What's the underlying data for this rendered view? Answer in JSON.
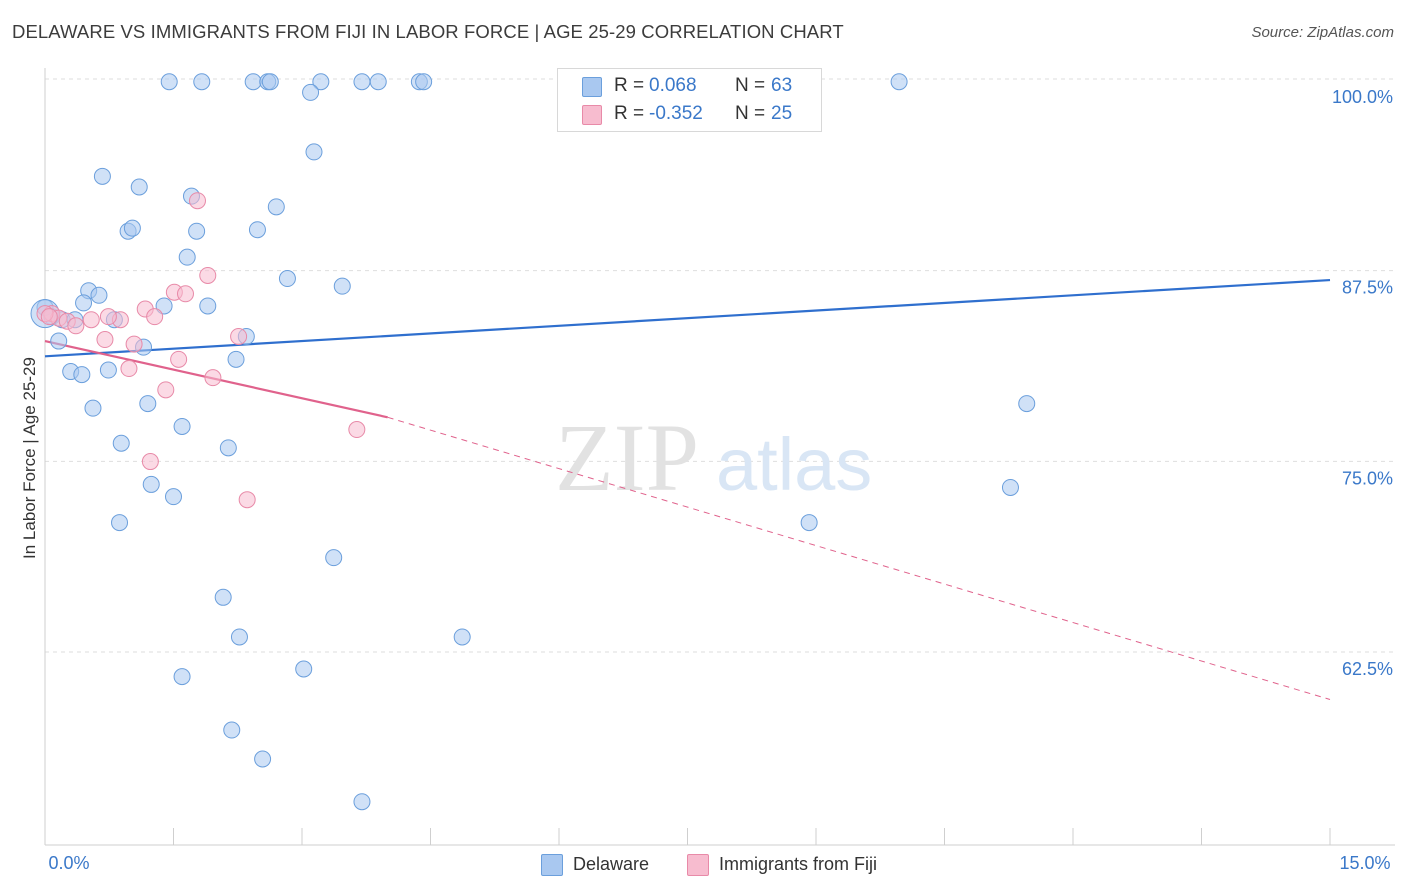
{
  "title": "DELAWARE VS IMMIGRANTS FROM FIJI IN LABOR FORCE | AGE 25-29 CORRELATION CHART",
  "source": "Source: ZipAtlas.com",
  "watermark": {
    "zip": "ZIP",
    "atlas": "atlas"
  },
  "legend": {
    "rows": [
      {
        "r_label": "R =",
        "r_value": "0.068",
        "n_label": "N =",
        "n_value": "63",
        "color": "#a9c8f0"
      },
      {
        "r_label": "R =",
        "r_value": "-0.352",
        "n_label": "N =",
        "n_value": "25",
        "color": "#f7bccf"
      }
    ]
  },
  "bottom_legend": [
    {
      "label": "Delaware",
      "color": "#a9c8f0"
    },
    {
      "label": "Immigrants from Fiji",
      "color": "#f7bccf"
    }
  ],
  "chart_data": {
    "type": "scatter",
    "title": "DELAWARE VS IMMIGRANTS FROM FIJI IN LABOR FORCE | AGE 25-29 CORRELATION CHART",
    "xlabel": "",
    "ylabel": "In Labor Force | Age 25-29",
    "xlim": [
      0,
      15
    ],
    "ylim": [
      50,
      101.3
    ],
    "x_tick_labels": [
      "0.0%",
      "15.0%"
    ],
    "y_ticks": [
      {
        "value": 100,
        "label": "100.0%"
      },
      {
        "value": 87.5,
        "label": "87.5%"
      },
      {
        "value": 75,
        "label": "75.0%"
      },
      {
        "value": 62.5,
        "label": "62.5%"
      }
    ],
    "grid": true,
    "series": [
      {
        "name": "Delaware",
        "color": "#a9c8f0",
        "stroke": "#6b9fdc",
        "trend": {
          "x": [
            0,
            15
          ],
          "y": [
            83.0,
            88.0
          ],
          "color": "#2f6fce"
        },
        "points": [
          [
            1.45,
            101
          ],
          [
            1.83,
            101
          ],
          [
            2.43,
            101
          ],
          [
            2.6,
            101
          ],
          [
            2.63,
            101
          ],
          [
            3.22,
            101
          ],
          [
            3.7,
            101
          ],
          [
            3.89,
            101
          ],
          [
            4.37,
            101
          ],
          [
            4.42,
            101
          ],
          [
            7.6,
            101
          ],
          [
            9.97,
            101
          ],
          [
            3.1,
            100.3
          ],
          [
            3.14,
            96.4
          ],
          [
            0.67,
            94.8
          ],
          [
            1.1,
            94.1
          ],
          [
            1.71,
            93.5
          ],
          [
            2.7,
            92.8
          ],
          [
            0.97,
            91.2
          ],
          [
            1.02,
            91.4
          ],
          [
            1.77,
            91.2
          ],
          [
            2.48,
            91.3
          ],
          [
            1.66,
            89.5
          ],
          [
            2.83,
            88.1
          ],
          [
            3.47,
            87.6
          ],
          [
            0.51,
            87.3
          ],
          [
            0.63,
            87.0
          ],
          [
            0.45,
            86.5
          ],
          [
            0.0,
            86.2
          ],
          [
            1.39,
            86.3
          ],
          [
            1.9,
            86.3
          ],
          [
            0.08,
            85.6
          ],
          [
            0.2,
            85.4
          ],
          [
            0.81,
            85.4
          ],
          [
            0.35,
            85.4
          ],
          [
            2.35,
            84.3
          ],
          [
            1.15,
            83.6
          ],
          [
            0.16,
            84.0
          ],
          [
            2.23,
            82.8
          ],
          [
            0.3,
            82.0
          ],
          [
            0.43,
            81.8
          ],
          [
            0.74,
            82.1
          ],
          [
            1.2,
            79.9
          ],
          [
            0.56,
            79.6
          ],
          [
            11.46,
            79.9
          ],
          [
            1.6,
            78.4
          ],
          [
            0.89,
            77.3
          ],
          [
            2.14,
            77.0
          ],
          [
            1.24,
            74.6
          ],
          [
            1.5,
            73.8
          ],
          [
            11.27,
            74.4
          ],
          [
            0.87,
            72.1
          ],
          [
            8.92,
            72.1
          ],
          [
            3.37,
            69.8
          ],
          [
            2.08,
            67.2
          ],
          [
            2.27,
            64.6
          ],
          [
            4.87,
            64.6
          ],
          [
            3.02,
            62.5
          ],
          [
            1.6,
            62.0
          ],
          [
            2.18,
            58.5
          ],
          [
            2.54,
            56.6
          ],
          [
            3.7,
            53.8
          ],
          [
            0.0,
            85.8
          ]
        ]
      },
      {
        "name": "Immigrants from Fiji",
        "color": "#f7bccf",
        "stroke": "#e88aa8",
        "trend": {
          "x": [
            0,
            4.0
          ],
          "y": [
            84.0,
            79.0
          ],
          "dashed_to": {
            "x": 15,
            "y": 60.5
          },
          "color": "#e0628c"
        },
        "points": [
          [
            1.78,
            93.2
          ],
          [
            1.9,
            88.3
          ],
          [
            1.51,
            87.2
          ],
          [
            1.64,
            87.1
          ],
          [
            1.17,
            86.1
          ],
          [
            1.28,
            85.6
          ],
          [
            0.08,
            85.8
          ],
          [
            0.16,
            85.5
          ],
          [
            0.26,
            85.3
          ],
          [
            0.54,
            85.4
          ],
          [
            0.88,
            85.4
          ],
          [
            0.74,
            85.6
          ],
          [
            0.36,
            85.0
          ],
          [
            0.7,
            84.1
          ],
          [
            2.26,
            84.3
          ],
          [
            1.04,
            83.8
          ],
          [
            1.56,
            82.8
          ],
          [
            0.98,
            82.2
          ],
          [
            1.96,
            81.6
          ],
          [
            1.41,
            80.8
          ],
          [
            3.64,
            78.2
          ],
          [
            1.23,
            76.1
          ],
          [
            2.36,
            73.6
          ],
          [
            0.0,
            85.8
          ],
          [
            0.05,
            85.6
          ]
        ]
      }
    ]
  }
}
